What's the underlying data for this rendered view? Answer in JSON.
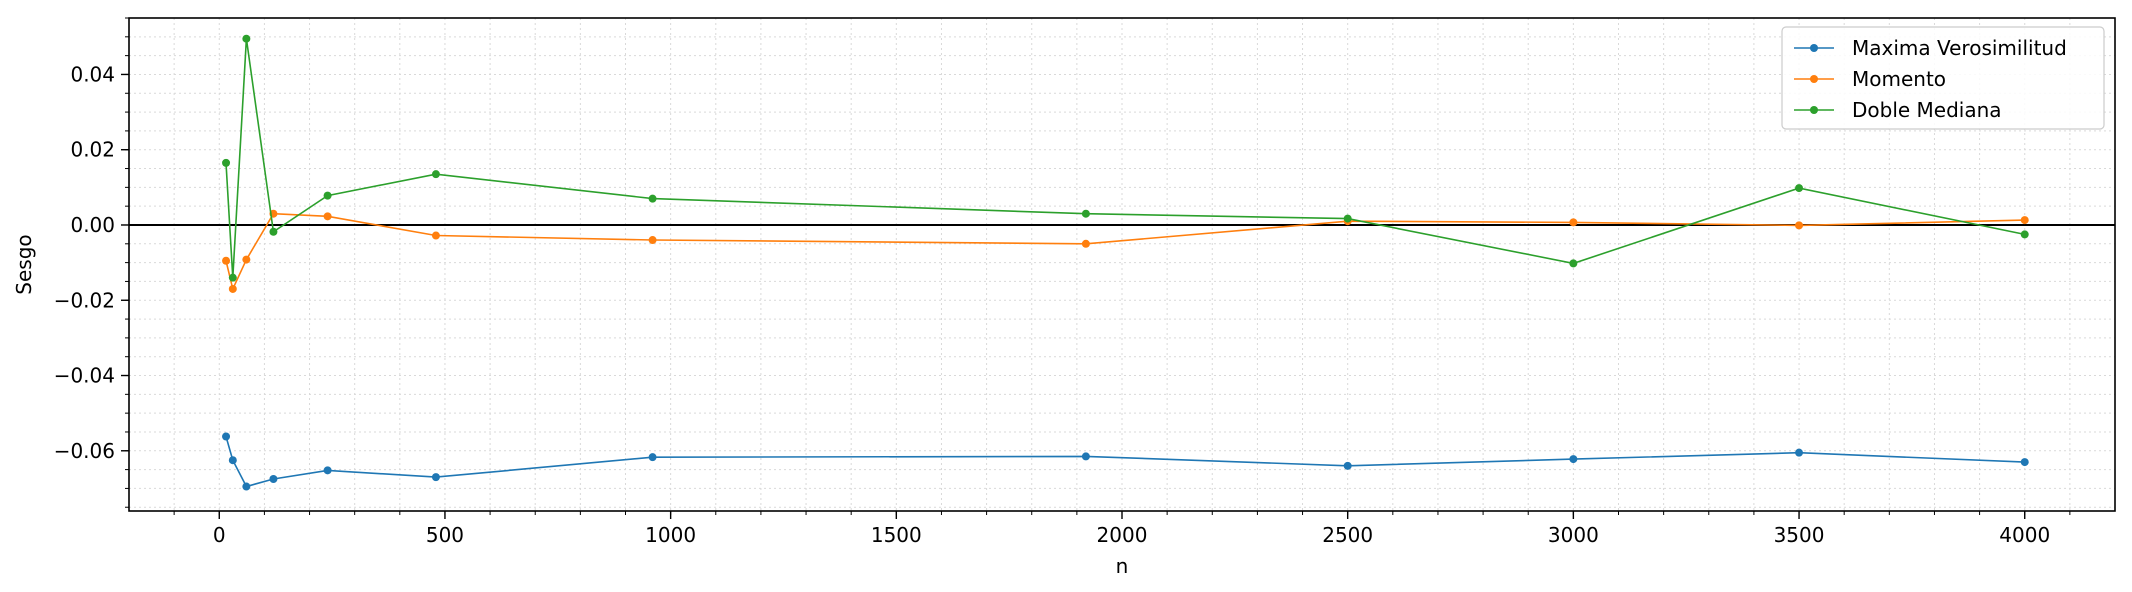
{
  "chart_data": {
    "type": "line",
    "title": "",
    "xlabel": "n",
    "ylabel": "Sesgo",
    "xlim": [
      -200,
      4200
    ],
    "ylim": [
      -0.076,
      0.055
    ],
    "xticks": [
      0,
      500,
      1000,
      1500,
      2000,
      2500,
      3000,
      3500,
      4000
    ],
    "xtick_labels": [
      "0",
      "500",
      "1000",
      "1500",
      "2000",
      "2500",
      "3000",
      "3500",
      "4000"
    ],
    "yticks": [
      -0.06,
      -0.04,
      -0.02,
      0.0,
      0.02,
      0.04
    ],
    "ytick_labels": [
      "−0.06",
      "−0.04",
      "−0.02",
      "0.00",
      "0.02",
      "0.04"
    ],
    "grid": true,
    "reference_line_y": 0.0,
    "legend_position": "top-right",
    "x": [
      15,
      30,
      60,
      120,
      240,
      480,
      960,
      1920,
      2500,
      3000,
      3500,
      4000
    ],
    "series": [
      {
        "name": "Maxima Verosimilitud",
        "color": "#1f77b4",
        "values": [
          -0.0562,
          -0.0625,
          -0.0695,
          -0.0675,
          -0.0652,
          -0.067,
          -0.0617,
          -0.0615,
          -0.064,
          -0.0622,
          -0.0605,
          -0.063
        ]
      },
      {
        "name": "Momento",
        "color": "#ff7f0e",
        "values": [
          -0.0095,
          -0.017,
          -0.0092,
          0.003,
          0.0023,
          -0.0028,
          -0.004,
          -0.005,
          0.001,
          0.0007,
          -0.0001,
          0.0013
        ]
      },
      {
        "name": "Doble Mediana",
        "color": "#2ca02c",
        "values": [
          0.0165,
          -0.014,
          0.0495,
          -0.0018,
          0.0078,
          0.0135,
          0.007,
          0.003,
          0.0017,
          -0.0102,
          0.0098,
          -0.0025
        ]
      }
    ]
  }
}
